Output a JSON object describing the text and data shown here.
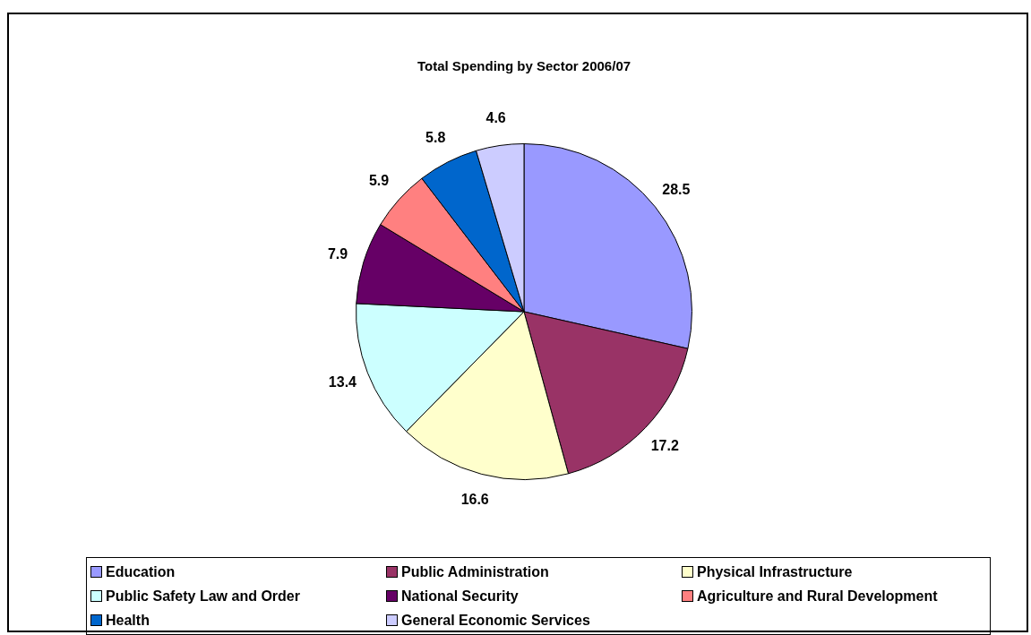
{
  "chart_data": {
    "type": "pie",
    "title": "Total Spending by Sector 2006/07",
    "categories": [
      "Education",
      "Public Administration",
      "Physical Infrastructure",
      "Public Safety Law and Order",
      "National Security",
      "Agriculture and Rural Development",
      "Health",
      "General Economic Services"
    ],
    "values": [
      28.5,
      17.2,
      16.6,
      13.4,
      7.9,
      5.9,
      5.8,
      4.6
    ],
    "colors": [
      "#9999ff",
      "#993366",
      "#ffffcc",
      "#ccffff",
      "#660066",
      "#ff8080",
      "#0066cc",
      "#ccccff"
    ],
    "data_labels": true,
    "legend": "bottom"
  }
}
